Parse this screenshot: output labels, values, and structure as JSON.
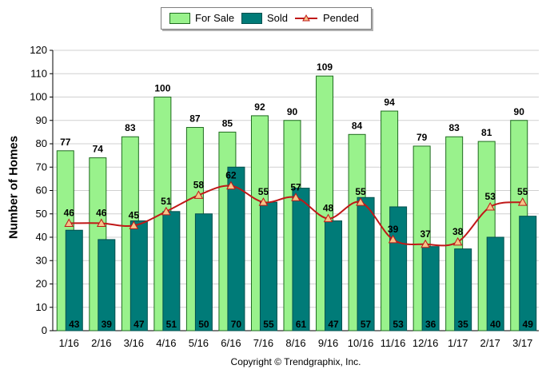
{
  "legend": {
    "for_sale": "For Sale",
    "sold": "Sold",
    "pended": "Pended"
  },
  "colors": {
    "for_sale_fill": "#99f28c",
    "for_sale_stroke": "#1f6b1f",
    "sold_fill": "#007b78",
    "sold_stroke": "#00504e",
    "pended_line": "#c01818",
    "pended_marker": "#f5c487"
  },
  "copyright": "Copyright © Trendgraphix, Inc.",
  "chart_data": {
    "type": "bar",
    "ylabel": "Number of Homes",
    "xlabel": "",
    "ylim": [
      0,
      120
    ],
    "yticks": [
      0,
      10,
      20,
      30,
      40,
      50,
      60,
      70,
      80,
      90,
      100,
      110,
      120
    ],
    "grid": true,
    "legend_position": "top-center",
    "categories": [
      "1/16",
      "2/16",
      "3/16",
      "4/16",
      "5/16",
      "6/16",
      "7/16",
      "8/16",
      "9/16",
      "10/16",
      "11/16",
      "12/16",
      "1/17",
      "2/17",
      "3/17"
    ],
    "series": [
      {
        "name": "For Sale",
        "type": "bar",
        "values": [
          77,
          74,
          83,
          100,
          87,
          85,
          92,
          90,
          109,
          84,
          94,
          79,
          83,
          81,
          90
        ]
      },
      {
        "name": "Sold",
        "type": "bar",
        "values": [
          43,
          39,
          47,
          51,
          50,
          70,
          55,
          61,
          47,
          57,
          53,
          36,
          35,
          40,
          49
        ]
      },
      {
        "name": "Pended",
        "type": "line",
        "values": [
          46,
          46,
          45,
          51,
          58,
          62,
          55,
          57,
          48,
          55,
          39,
          37,
          38,
          53,
          55
        ]
      }
    ]
  }
}
